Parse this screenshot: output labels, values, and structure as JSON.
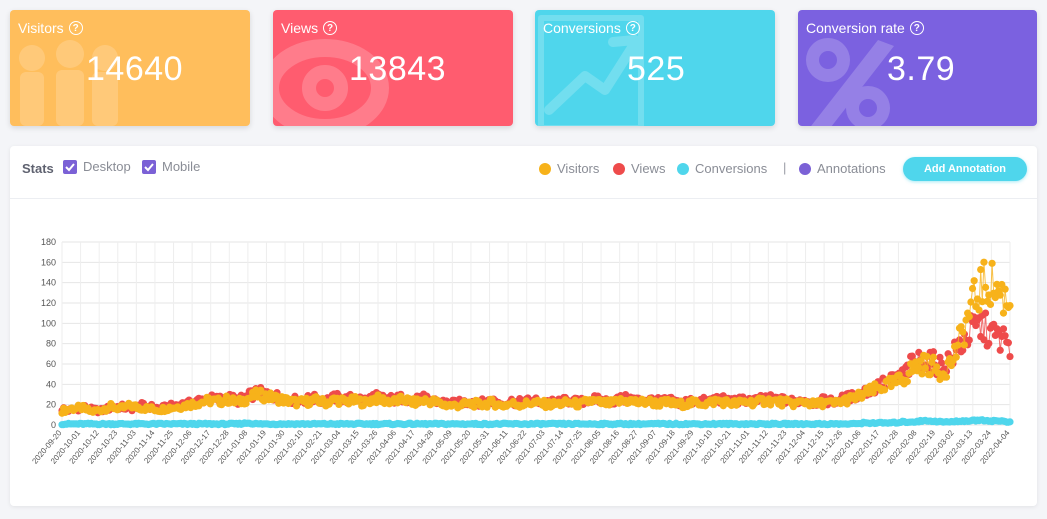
{
  "cards": [
    {
      "label": "Visitors",
      "value": "14640",
      "color": "#ffbe5c",
      "icon": "people-icon"
    },
    {
      "label": "Views",
      "value": "13843",
      "color": "#ff5c6f",
      "icon": "eye-icon"
    },
    {
      "label": "Conversions",
      "value": "525",
      "color": "#4fd6ec",
      "icon": "trend-up-icon"
    },
    {
      "label": "Conversion rate",
      "value": "3.79",
      "color": "#7b61e0",
      "icon": "percent-icon"
    }
  ],
  "help_glyph": "?",
  "stats": {
    "title": "Stats",
    "desktop_label": "Desktop",
    "mobile_label": "Mobile",
    "desktop_checked": true,
    "mobile_checked": true,
    "legend": [
      {
        "label": "Visitors",
        "color": "#f7b21a"
      },
      {
        "label": "Views",
        "color": "#ee4b4b"
      },
      {
        "label": "Conversions",
        "color": "#4fd6ec"
      },
      {
        "label": "Annotations",
        "color": "#7b61d6"
      }
    ],
    "separator": "|",
    "add_annotation_label": "Add Annotation"
  },
  "chart_data": {
    "type": "line",
    "x_start": "2020-09-20",
    "x_end": "2022-04-04",
    "x_tick_labels": [
      "2020-09-20",
      "2020-10-01",
      "2020-10-12",
      "2020-10-23",
      "2020-11-03",
      "2020-11-14",
      "2020-11-25",
      "2020-12-06",
      "2020-12-17",
      "2020-12-28",
      "2021-01-08",
      "2021-01-19",
      "2021-01-30",
      "2021-02-10",
      "2021-02-21",
      "2021-03-04",
      "2021-03-15",
      "2021-03-26",
      "2021-04-06",
      "2021-04-17",
      "2021-04-28",
      "2021-05-09",
      "2021-05-20",
      "2021-05-31",
      "2021-06-11",
      "2021-06-22",
      "2021-07-03",
      "2021-07-14",
      "2021-07-25",
      "2021-08-05",
      "2021-08-16",
      "2021-08-27",
      "2021-09-07",
      "2021-09-18",
      "2021-09-29",
      "2021-10-10",
      "2021-10-21",
      "2021-11-01",
      "2021-11-12",
      "2021-11-23",
      "2021-12-04",
      "2021-12-15",
      "2021-12-26",
      "2022-01-06",
      "2022-01-17",
      "2022-01-28",
      "2022-02-08",
      "2022-02-19",
      "2022-03-02",
      "2022-03-13",
      "2022-03-24",
      "2022-04-04"
    ],
    "y_ticks": [
      0,
      20,
      40,
      60,
      80,
      100,
      120,
      140,
      160,
      180
    ],
    "ylim": [
      0,
      180
    ],
    "grid": true,
    "series": [
      {
        "name": "Visitors",
        "color": "#f7b21a",
        "weekly_values": [
          14,
          16,
          17,
          13,
          15,
          18,
          16,
          19,
          17,
          16,
          15,
          17,
          18,
          20,
          22,
          24,
          23,
          25,
          22,
          26,
          30,
          28,
          26,
          24,
          22,
          23,
          24,
          22,
          25,
          23,
          24,
          22,
          26,
          24,
          23,
          25,
          22,
          24,
          23,
          20,
          19,
          20,
          21,
          20,
          22,
          19,
          21,
          20,
          22,
          21,
          20,
          21,
          22,
          20,
          24,
          22,
          21,
          23,
          24,
          22,
          23,
          21,
          22,
          20,
          21,
          22,
          21,
          24,
          22,
          21,
          23,
          22,
          24,
          23,
          22,
          21,
          23,
          20,
          22,
          21,
          24,
          26,
          30,
          34,
          38,
          40,
          45,
          55,
          60,
          58,
          52,
          62,
          85,
          115,
          135,
          140,
          130,
          120
        ]
      },
      {
        "name": "Views",
        "color": "#ee4b4b",
        "weekly_values": [
          16,
          14,
          18,
          15,
          14,
          17,
          18,
          16,
          19,
          18,
          16,
          18,
          20,
          21,
          24,
          26,
          25,
          27,
          24,
          28,
          32,
          30,
          28,
          26,
          24,
          25,
          26,
          24,
          27,
          25,
          27,
          24,
          28,
          26,
          25,
          27,
          24,
          26,
          24,
          22,
          21,
          22,
          23,
          22,
          24,
          21,
          23,
          22,
          24,
          23,
          22,
          23,
          24,
          22,
          26,
          24,
          23,
          25,
          26,
          24,
          25,
          23,
          24,
          22,
          23,
          24,
          23,
          26,
          24,
          23,
          25,
          24,
          26,
          25,
          24,
          23,
          25,
          22,
          24,
          23,
          26,
          28,
          32,
          36,
          40,
          44,
          48,
          60,
          65,
          62,
          58,
          66,
          80,
          92,
          98,
          90,
          85,
          80
        ]
      },
      {
        "name": "Conversions",
        "color": "#4fd6ec",
        "weekly_values": [
          1,
          1,
          1,
          1,
          1,
          1,
          1,
          1,
          1,
          1,
          1,
          1,
          1,
          1,
          1,
          1,
          1,
          1,
          1,
          2,
          1,
          1,
          1,
          1,
          1,
          1,
          1,
          1,
          1,
          1,
          1,
          1,
          1,
          1,
          1,
          1,
          1,
          1,
          1,
          1,
          1,
          1,
          1,
          1,
          1,
          1,
          1,
          1,
          1,
          1,
          1,
          1,
          1,
          1,
          1,
          1,
          1,
          1,
          1,
          1,
          1,
          1,
          1,
          1,
          1,
          1,
          1,
          1,
          1,
          1,
          1,
          1,
          1,
          1,
          1,
          1,
          1,
          1,
          1,
          1,
          1,
          1,
          2,
          2,
          2,
          2,
          3,
          3,
          4,
          4,
          3,
          3,
          4,
          4,
          5,
          4,
          4,
          3
        ]
      }
    ]
  }
}
